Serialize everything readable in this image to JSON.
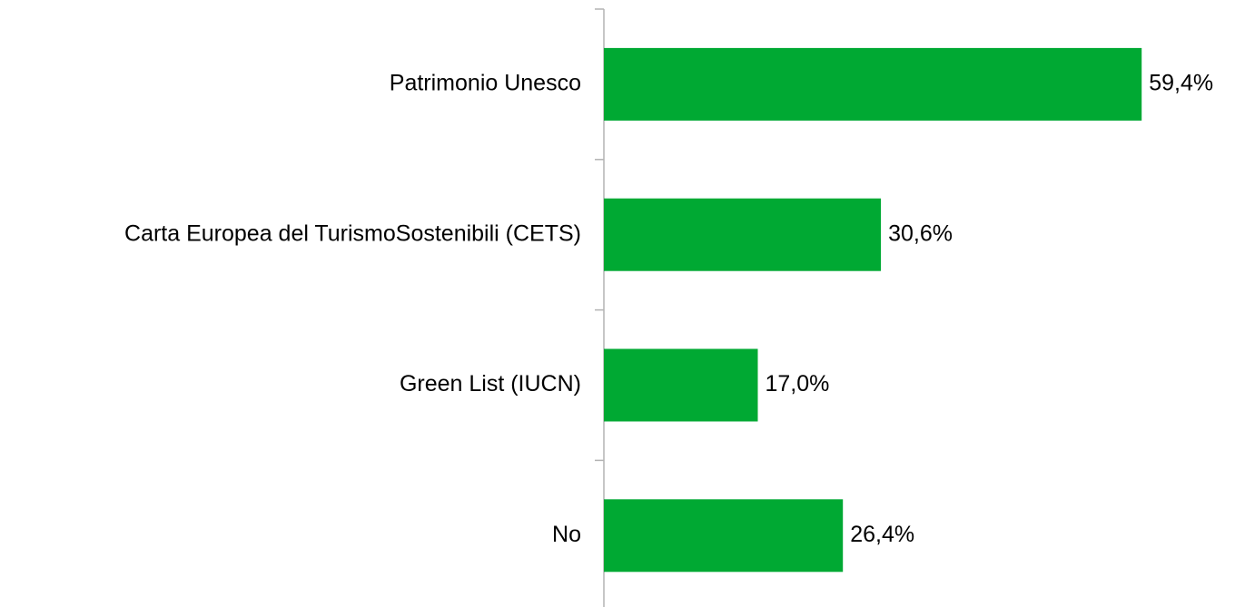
{
  "chart_data": {
    "type": "bar",
    "orientation": "horizontal",
    "categories": [
      "Patrimonio Unesco",
      "Carta Europea del TurismoSostenibili (CETS)",
      "Green List (IUCN)",
      "No"
    ],
    "values": [
      59.4,
      30.6,
      17.0,
      26.4
    ],
    "value_labels": [
      "59,4%",
      "30,6%",
      "17,0%",
      "26,4%"
    ],
    "color": "#00a933"
  }
}
